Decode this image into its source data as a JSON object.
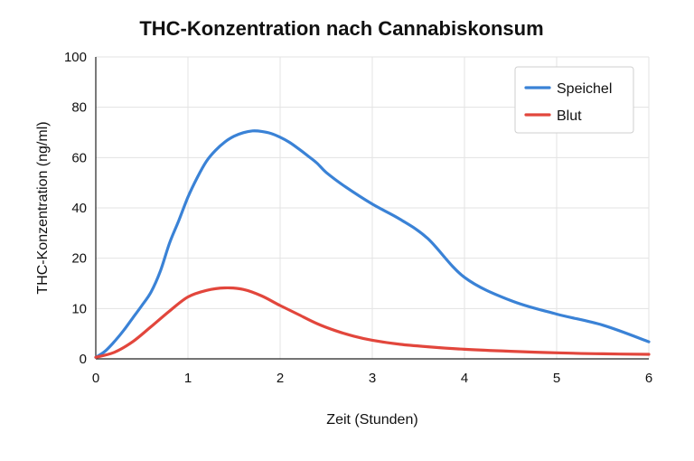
{
  "chart_data": {
    "type": "line",
    "title": "THC-Konzentration nach Cannabiskonsum",
    "xlabel": "Zeit (Stunden)",
    "ylabel": "THC-Konzentration (ng/ml)",
    "xlim": [
      0,
      6
    ],
    "x_ticks": [
      0,
      1,
      2,
      3,
      4,
      5,
      6
    ],
    "y_ticks": [
      0,
      10,
      20,
      40,
      60,
      80,
      100
    ],
    "grid": true,
    "legend_position": "top-right",
    "series": [
      {
        "name": "Speichel",
        "color": "#3a82d6",
        "x": [
          0,
          0.1,
          0.2,
          0.3,
          0.4,
          0.5,
          0.6,
          0.7,
          0.8,
          0.9,
          1.0,
          1.1,
          1.2,
          1.3,
          1.4,
          1.5,
          1.6,
          1.7,
          1.8,
          1.9,
          2.0,
          2.1,
          2.2,
          2.3,
          2.4,
          2.5,
          2.7,
          3.0,
          3.3,
          3.6,
          4.0,
          4.5,
          5.0,
          5.5,
          6.0
        ],
        "y": [
          0.3,
          1.5,
          3.4,
          5.6,
          8.1,
          10.6,
          13.3,
          17.4,
          26.0,
          34.9,
          44.3,
          52.0,
          58.5,
          62.9,
          66.2,
          68.5,
          69.9,
          70.6,
          70.4,
          69.6,
          68.1,
          66.1,
          63.5,
          60.7,
          57.8,
          54.1,
          48.6,
          41.5,
          35.5,
          27.9,
          16.2,
          11.6,
          8.9,
          6.7,
          3.4
        ]
      },
      {
        "name": "Blut",
        "color": "#e2463c",
        "x": [
          0,
          0.2,
          0.4,
          0.6,
          0.8,
          1.0,
          1.2,
          1.4,
          1.6,
          1.8,
          2.0,
          2.2,
          2.4,
          2.6,
          2.8,
          3.0,
          3.3,
          3.6,
          4.0,
          4.5,
          5.0,
          5.5,
          6.0
        ],
        "y": [
          0.3,
          1.3,
          3.4,
          6.4,
          9.5,
          12.3,
          13.6,
          14.1,
          13.8,
          12.5,
          10.6,
          8.8,
          7.0,
          5.6,
          4.5,
          3.7,
          2.9,
          2.4,
          1.9,
          1.5,
          1.2,
          1.0,
          0.9
        ]
      }
    ]
  }
}
